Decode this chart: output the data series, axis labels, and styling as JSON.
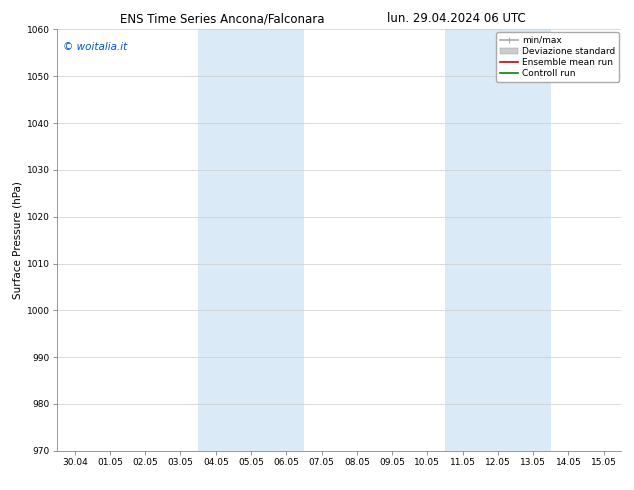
{
  "title_left": "ENS Time Series Ancona/Falconara",
  "title_right": "lun. 29.04.2024 06 UTC",
  "ylabel": "Surface Pressure (hPa)",
  "ylim": [
    970,
    1060
  ],
  "yticks": [
    970,
    980,
    990,
    1000,
    1010,
    1020,
    1030,
    1040,
    1050,
    1060
  ],
  "x_labels": [
    "30.04",
    "01.05",
    "02.05",
    "03.05",
    "04.05",
    "05.05",
    "06.05",
    "07.05",
    "08.05",
    "09.05",
    "10.05",
    "11.05",
    "12.05",
    "13.05",
    "14.05",
    "15.05"
  ],
  "shaded_regions": [
    {
      "xstart": 4,
      "xend": 6
    },
    {
      "xstart": 11,
      "xend": 13
    }
  ],
  "shaded_color": "#daeaf7",
  "legend_items": [
    {
      "label": "min/max",
      "color": "#aaaaaa",
      "lw": 1.2
    },
    {
      "label": "Deviazione standard",
      "color": "#cccccc",
      "lw": 5
    },
    {
      "label": "Ensemble mean run",
      "color": "#cc0000",
      "lw": 1.2
    },
    {
      "label": "Controll run",
      "color": "#008800",
      "lw": 1.2
    }
  ],
  "watermark": "© woitalia.it",
  "watermark_color": "#0055cc",
  "background_color": "#ffffff",
  "plot_bg_color": "#ffffff",
  "title_fontsize": 8.5,
  "tick_fontsize": 6.5,
  "ylabel_fontsize": 7.5,
  "watermark_fontsize": 7.5,
  "legend_fontsize": 6.5
}
